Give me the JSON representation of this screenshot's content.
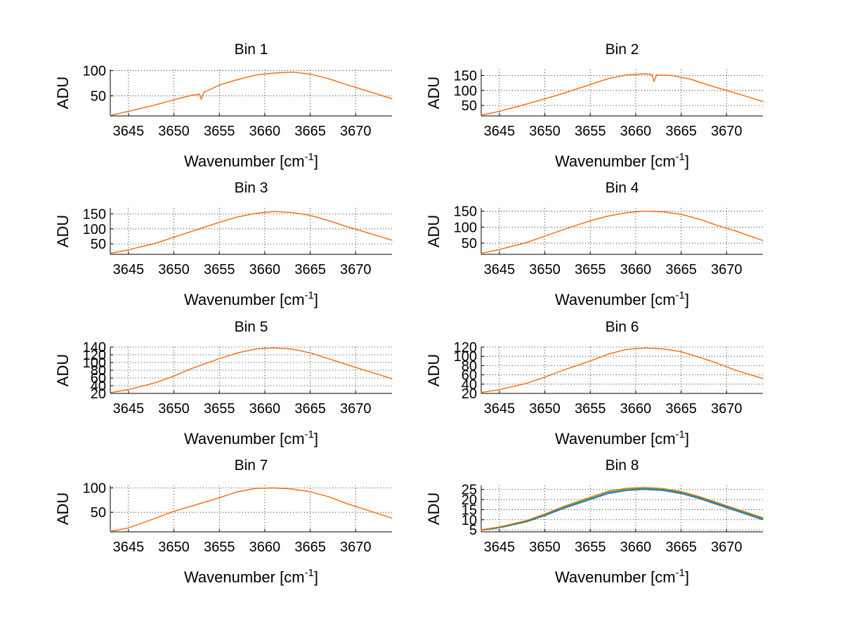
{
  "chart_data": [
    {
      "type": "line",
      "title": "Bin 1",
      "xlabel": "Wavenumber [cm",
      "xlabel_sup": "-1",
      "xlabel_tail": "]",
      "ylabel": "ADU",
      "xlim": [
        3643,
        3674
      ],
      "ylim": [
        10,
        102
      ],
      "xticks": [
        3645,
        3650,
        3655,
        3660,
        3665,
        3670
      ],
      "yticks": [
        50,
        100
      ],
      "grid": true,
      "series": [
        {
          "color": "#FF6600",
          "x": [
            3643,
            3645,
            3648,
            3650,
            3652,
            3652.8,
            3653.0,
            3653.3,
            3655,
            3657,
            3659,
            3661,
            3663,
            3665,
            3667,
            3669,
            3671,
            3674
          ],
          "y": [
            11,
            19,
            32,
            42,
            51,
            53,
            43,
            57,
            71,
            82,
            91,
            95,
            97,
            93,
            84,
            72,
            61,
            44
          ]
        }
      ]
    },
    {
      "type": "line",
      "title": "Bin 2",
      "xlabel": "Wavenumber [cm",
      "xlabel_sup": "-1",
      "xlabel_tail": "]",
      "ylabel": "ADU",
      "xlim": [
        3643,
        3674
      ],
      "ylim": [
        15,
        170
      ],
      "xticks": [
        3645,
        3650,
        3655,
        3660,
        3665,
        3670
      ],
      "yticks": [
        50,
        100,
        150
      ],
      "grid": true,
      "series": [
        {
          "color": "#FF6600",
          "x": [
            3643,
            3645,
            3648,
            3650,
            3652,
            3655,
            3657,
            3659,
            3661,
            3661.8,
            3662.0,
            3662.3,
            3664,
            3666,
            3668,
            3670,
            3672,
            3674
          ],
          "y": [
            18,
            30,
            55,
            72,
            90,
            120,
            140,
            152,
            156,
            153,
            130,
            152,
            150,
            138,
            118,
            100,
            82,
            63
          ]
        }
      ]
    },
    {
      "type": "line",
      "title": "Bin 3",
      "xlabel": "Wavenumber [cm",
      "xlabel_sup": "-1",
      "xlabel_tail": "]",
      "ylabel": "ADU",
      "xlim": [
        3643,
        3674
      ],
      "ylim": [
        15,
        170
      ],
      "xticks": [
        3645,
        3650,
        3655,
        3660,
        3665,
        3670
      ],
      "yticks": [
        50,
        100,
        150
      ],
      "grid": true,
      "series": [
        {
          "color": "#FF6600",
          "x": [
            3643,
            3645,
            3648,
            3650,
            3652,
            3655,
            3657,
            3659,
            3661,
            3663,
            3665,
            3667,
            3669,
            3671,
            3674
          ],
          "y": [
            18,
            30,
            52,
            72,
            92,
            122,
            140,
            152,
            158,
            155,
            145,
            128,
            108,
            90,
            62
          ]
        }
      ]
    },
    {
      "type": "line",
      "title": "Bin 4",
      "xlabel": "Wavenumber [cm",
      "xlabel_sup": "-1",
      "xlabel_tail": "]",
      "ylabel": "ADU",
      "xlim": [
        3643,
        3674
      ],
      "ylim": [
        15,
        160
      ],
      "xticks": [
        3645,
        3650,
        3655,
        3660,
        3665,
        3670
      ],
      "yticks": [
        50,
        100,
        150
      ],
      "grid": true,
      "series": [
        {
          "color": "#FF6600",
          "x": [
            3643,
            3645,
            3648,
            3650,
            3652,
            3655,
            3657,
            3659,
            3661,
            3663,
            3665,
            3667,
            3669,
            3671,
            3674
          ],
          "y": [
            18,
            30,
            52,
            72,
            92,
            120,
            135,
            145,
            150,
            148,
            140,
            125,
            105,
            88,
            58
          ]
        }
      ]
    },
    {
      "type": "line",
      "title": "Bin 5",
      "xlabel": "Wavenumber [cm",
      "xlabel_sup": "-1",
      "xlabel_tail": "]",
      "ylabel": "ADU",
      "xlim": [
        3643,
        3674
      ],
      "ylim": [
        20,
        140
      ],
      "xticks": [
        3645,
        3650,
        3655,
        3660,
        3665,
        3670
      ],
      "yticks": [
        20,
        40,
        60,
        80,
        100,
        120,
        140
      ],
      "ytick_labels": [
        "20",
        "40",
        "60",
        "80",
        "100",
        "120",
        "140"
      ],
      "grid": true,
      "series": [
        {
          "color": "#FF6600",
          "x": [
            3643,
            3645,
            3648,
            3650,
            3652,
            3655,
            3657,
            3659,
            3661,
            3663,
            3665,
            3667,
            3669,
            3671,
            3674
          ],
          "y": [
            22,
            30,
            48,
            65,
            85,
            110,
            125,
            135,
            138,
            135,
            125,
            110,
            95,
            80,
            58
          ]
        }
      ]
    },
    {
      "type": "line",
      "title": "Bin 6",
      "xlabel": "Wavenumber [cm",
      "xlabel_sup": "-1",
      "xlabel_tail": "]",
      "ylabel": "ADU",
      "xlim": [
        3643,
        3674
      ],
      "ylim": [
        20,
        120
      ],
      "xticks": [
        3645,
        3650,
        3655,
        3660,
        3665,
        3670
      ],
      "yticks": [
        20,
        40,
        60,
        80,
        100,
        120
      ],
      "ytick_labels": [
        "20",
        "40",
        "60",
        "80",
        "100",
        "120"
      ],
      "grid": true,
      "series": [
        {
          "color": "#FF6600",
          "x": [
            3643,
            3645,
            3648,
            3650,
            3652,
            3655,
            3657,
            3659,
            3661,
            3663,
            3665,
            3667,
            3669,
            3671,
            3674
          ],
          "y": [
            22,
            28,
            42,
            55,
            70,
            90,
            105,
            115,
            118,
            116,
            110,
            98,
            85,
            70,
            52
          ]
        }
      ]
    },
    {
      "type": "line",
      "title": "Bin 7",
      "xlabel": "Wavenumber [cm",
      "xlabel_sup": "-1",
      "xlabel_tail": "]",
      "ylabel": "ADU",
      "xlim": [
        3643,
        3674
      ],
      "ylim": [
        10,
        105
      ],
      "xticks": [
        3645,
        3650,
        3655,
        3660,
        3665,
        3670
      ],
      "yticks": [
        50,
        100
      ],
      "grid": true,
      "series": [
        {
          "color": "#FF6600",
          "x": [
            3643,
            3645,
            3648,
            3650,
            3652,
            3655,
            3657,
            3659,
            3661,
            3663,
            3665,
            3667,
            3669,
            3671,
            3674
          ],
          "y": [
            11,
            18,
            38,
            52,
            63,
            80,
            92,
            99,
            100,
            98,
            92,
            82,
            68,
            56,
            38
          ]
        }
      ]
    },
    {
      "type": "line",
      "title": "Bin 8",
      "xlabel": "Wavenumber [cm",
      "xlabel_sup": "-1",
      "xlabel_tail": "]",
      "ylabel": "ADU",
      "xlim": [
        3643,
        3674
      ],
      "ylim": [
        4,
        27
      ],
      "xticks": [
        3645,
        3650,
        3655,
        3660,
        3665,
        3670
      ],
      "yticks": [
        5,
        10,
        15,
        20,
        25
      ],
      "grid": true,
      "series": [
        {
          "color": "#3366CC",
          "x": [
            3643,
            3645,
            3648,
            3650,
            3652,
            3655,
            3657,
            3659,
            3661,
            3663,
            3665,
            3667,
            3669,
            3671,
            3674
          ],
          "y": [
            4.8,
            6,
            9,
            12,
            15.5,
            20,
            23,
            24.5,
            25,
            24.5,
            23,
            20.5,
            17.5,
            14.5,
            10
          ]
        },
        {
          "color": "#00AA55",
          "x": [
            3643,
            3645,
            3648,
            3650,
            3652,
            3655,
            3657,
            3659,
            3661,
            3663,
            3665,
            3667,
            3669,
            3671,
            3674
          ],
          "y": [
            4.9,
            6.2,
            9.3,
            12.4,
            16,
            20.6,
            23.6,
            25,
            25.5,
            25,
            23.5,
            21,
            18,
            15,
            10.5
          ]
        },
        {
          "color": "#FF6600",
          "x": [
            3643,
            3645,
            3648,
            3650,
            3652,
            3655,
            3657,
            3659,
            3661,
            3663,
            3665,
            3667,
            3669,
            3671,
            3674
          ],
          "y": [
            5,
            6.4,
            9.6,
            12.8,
            16.5,
            21.2,
            24.2,
            25.6,
            26,
            25.5,
            24,
            21.5,
            18.5,
            15.5,
            11
          ]
        }
      ]
    }
  ]
}
